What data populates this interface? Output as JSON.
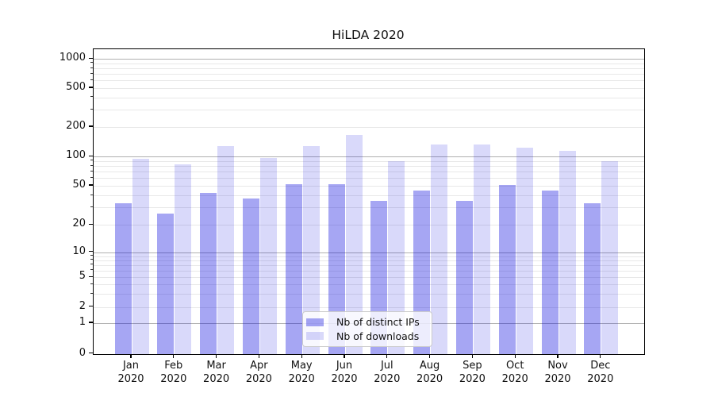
{
  "figure": {
    "title": "HiLDA 2020",
    "background": "#ffffff"
  },
  "chart_data": {
    "type": "bar",
    "title": "HiLDA 2020",
    "categories": [
      "Jan 2020",
      "Feb 2020",
      "Mar 2020",
      "Apr 2020",
      "May 2020",
      "Jun 2020",
      "Jul 2020",
      "Aug 2020",
      "Sep 2020",
      "Oct 2020",
      "Nov 2020",
      "Dec 2020"
    ],
    "series": [
      {
        "name": "Nb of distinct IPs",
        "color": "#0000dc",
        "alpha": 0.35,
        "values": [
          33,
          26,
          42,
          37,
          52,
          52,
          35,
          45,
          35,
          51,
          45,
          33
        ]
      },
      {
        "name": "Nb of downloads",
        "color": "#0000dc",
        "alpha": 0.15,
        "values": [
          95,
          84,
          127,
          96,
          127,
          165,
          89,
          134,
          134,
          124,
          114,
          90
        ]
      }
    ],
    "xlabel": "",
    "ylabel": "",
    "yscale": "symlog",
    "ylim": [
      0,
      1260
    ],
    "yticks": [
      0,
      1,
      2,
      5,
      10,
      20,
      50,
      100,
      200,
      500,
      1000
    ],
    "yminorticks": [
      3,
      4,
      6,
      7,
      8,
      9,
      30,
      40,
      60,
      70,
      80,
      90,
      300,
      400,
      600,
      700,
      800,
      900
    ],
    "grid": true,
    "legend_position": "lower center"
  },
  "colors": {
    "bar_ips_rendered": "#a6a6f2",
    "bar_downloads_rendered": "#d8d8f8",
    "grid_minor": "#e8e8e8",
    "grid_major": "#b0b0b0",
    "axis": "#000000",
    "text": "#111111"
  }
}
